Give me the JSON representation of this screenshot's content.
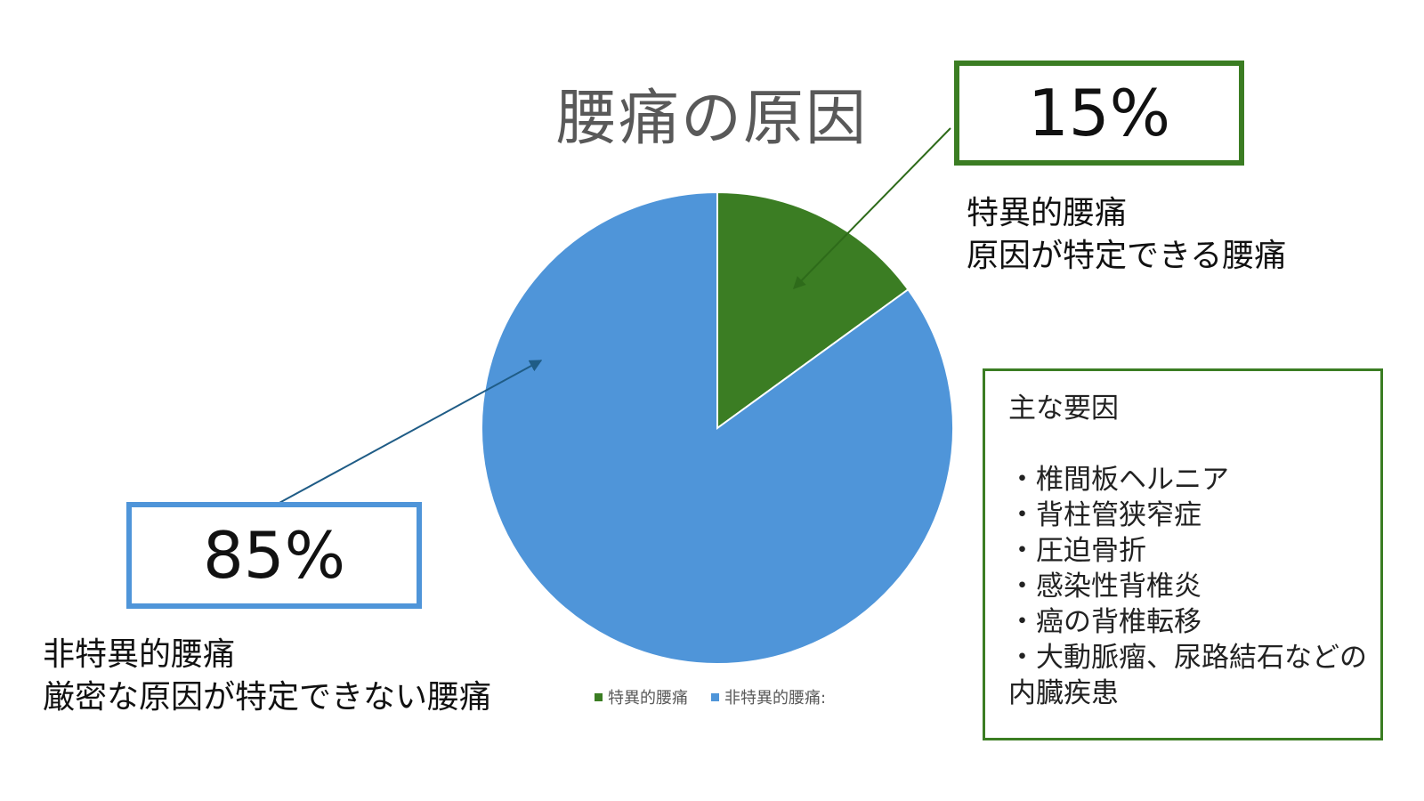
{
  "colors": {
    "specific": "#3b7d23",
    "nonspecific": "#4f95d9"
  },
  "chart_data": {
    "type": "pie",
    "title": "腰痛の原因",
    "categories": [
      "特異的腰痛",
      "非特異的腰痛:"
    ],
    "values": [
      15,
      85
    ],
    "colors": [
      "#3b7d23",
      "#4f95d9"
    ],
    "legend": "bottom",
    "data_labels": [
      "15%",
      "85%"
    ]
  },
  "annotations": {
    "specific": {
      "percent": "15%",
      "lines": [
        "特異的腰痛",
        "原因が特定できる腰痛"
      ]
    },
    "nonspecific": {
      "percent": "85%",
      "lines": [
        "非特異的腰痛",
        "厳密な原因が特定できない腰痛"
      ]
    }
  },
  "causes": {
    "heading": "主な要因",
    "items": [
      "・椎間板ヘルニア",
      "・背柱管狭窄症",
      "・圧迫骨折",
      "・感染性背椎炎",
      "・癌の背椎転移",
      "・大動脈瘤、尿路結石などの内臓疾患"
    ]
  }
}
